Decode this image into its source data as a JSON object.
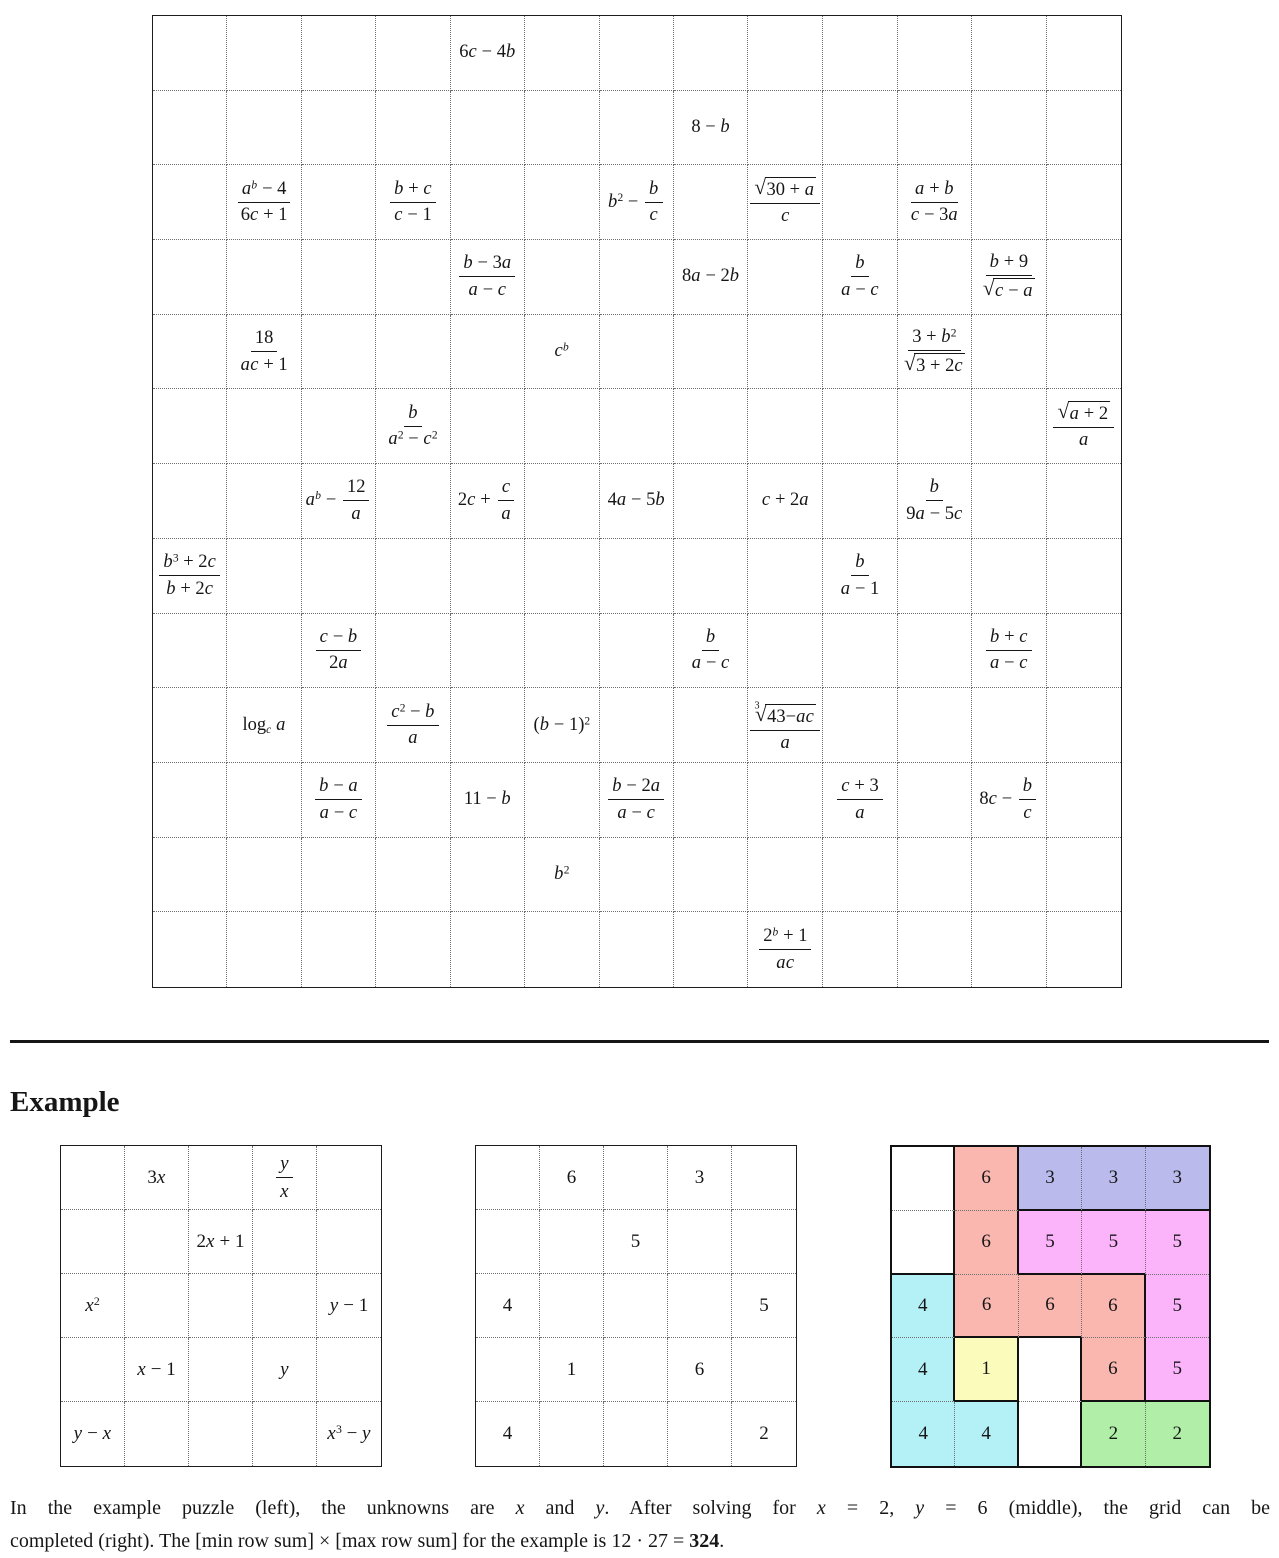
{
  "heading": "Example",
  "main_grid": {
    "rows": 13,
    "cols": 13,
    "cells": [
      {
        "r": 1,
        "c": 5,
        "tex": "6c - 4b"
      },
      {
        "r": 2,
        "c": 8,
        "tex": "8 - b"
      },
      {
        "r": 3,
        "c": 2,
        "tex": "\\frac{a^b - 4}{6c + 1}"
      },
      {
        "r": 3,
        "c": 4,
        "tex": "\\frac{b + c}{c - 1}"
      },
      {
        "r": 3,
        "c": 7,
        "tex": "b^2 - \\frac{b}{c}"
      },
      {
        "r": 3,
        "c": 9,
        "tex": "\\frac{\\sqrt{30 + a}}{c}"
      },
      {
        "r": 3,
        "c": 11,
        "tex": "\\frac{a + b}{c - 3a}"
      },
      {
        "r": 4,
        "c": 5,
        "tex": "\\frac{b - 3a}{a - c}"
      },
      {
        "r": 4,
        "c": 8,
        "tex": "8a - 2b"
      },
      {
        "r": 4,
        "c": 10,
        "tex": "\\frac{b}{a - c}"
      },
      {
        "r": 4,
        "c": 12,
        "tex": "\\frac{b + 9}{\\sqrt{c - a}}"
      },
      {
        "r": 5,
        "c": 2,
        "tex": "\\frac{18}{ac + 1}"
      },
      {
        "r": 5,
        "c": 6,
        "tex": "c^b"
      },
      {
        "r": 5,
        "c": 11,
        "tex": "\\frac{3 + b^2}{\\sqrt{3 + 2c}}"
      },
      {
        "r": 6,
        "c": 4,
        "tex": "\\frac{b}{a^2 - c^2}"
      },
      {
        "r": 6,
        "c": 13,
        "tex": "\\frac{\\sqrt{a + 2}}{a}"
      },
      {
        "r": 7,
        "c": 3,
        "tex": "a^b - \\frac{12}{a}"
      },
      {
        "r": 7,
        "c": 5,
        "tex": "2c + \\frac{c}{a}"
      },
      {
        "r": 7,
        "c": 7,
        "tex": "4a - 5b"
      },
      {
        "r": 7,
        "c": 9,
        "tex": "c + 2a"
      },
      {
        "r": 7,
        "c": 11,
        "tex": "\\frac{b}{9a - 5c}"
      },
      {
        "r": 8,
        "c": 1,
        "tex": "\\frac{b^3 + 2c}{b + 2c}"
      },
      {
        "r": 8,
        "c": 10,
        "tex": "\\frac{b}{a - 1}"
      },
      {
        "r": 9,
        "c": 3,
        "tex": "\\frac{c - b}{2a}"
      },
      {
        "r": 9,
        "c": 8,
        "tex": "\\frac{b}{a - c}"
      },
      {
        "r": 9,
        "c": 12,
        "tex": "\\frac{b + c}{a - c}"
      },
      {
        "r": 10,
        "c": 2,
        "tex": "\\log_c a"
      },
      {
        "r": 10,
        "c": 4,
        "tex": "\\frac{c^2 - b}{a}"
      },
      {
        "r": 10,
        "c": 6,
        "tex": "(b - 1)^2"
      },
      {
        "r": 10,
        "c": 9,
        "tex": "\\frac{\\sqrt[3]{43-ac}}{a}"
      },
      {
        "r": 11,
        "c": 3,
        "tex": "\\frac{b - a}{a - c}"
      },
      {
        "r": 11,
        "c": 5,
        "tex": "11 - b"
      },
      {
        "r": 11,
        "c": 7,
        "tex": "\\frac{b - 2a}{a - c}"
      },
      {
        "r": 11,
        "c": 10,
        "tex": "\\frac{c + 3}{a}"
      },
      {
        "r": 11,
        "c": 12,
        "tex": "8c - \\frac{b}{c}"
      },
      {
        "r": 12,
        "c": 6,
        "tex": "b^2"
      },
      {
        "r": 13,
        "c": 9,
        "tex": "\\frac{2^b + 1}{ac}"
      }
    ]
  },
  "example": {
    "clue_grid": {
      "rows": 5,
      "cols": 5,
      "cells": [
        {
          "r": 1,
          "c": 2,
          "tex": "3x"
        },
        {
          "r": 1,
          "c": 4,
          "tex": "\\frac{y}{x}"
        },
        {
          "r": 2,
          "c": 3,
          "tex": "2x + 1"
        },
        {
          "r": 3,
          "c": 1,
          "tex": "x^2"
        },
        {
          "r": 3,
          "c": 5,
          "tex": "y - 1"
        },
        {
          "r": 4,
          "c": 2,
          "tex": "x - 1"
        },
        {
          "r": 4,
          "c": 4,
          "tex": "y"
        },
        {
          "r": 5,
          "c": 1,
          "tex": "y - x"
        },
        {
          "r": 5,
          "c": 5,
          "tex": "x^3 - y"
        }
      ]
    },
    "solved_grid": {
      "rows": 5,
      "cols": 5,
      "cells": [
        {
          "r": 1,
          "c": 2,
          "tex": "6"
        },
        {
          "r": 1,
          "c": 4,
          "tex": "3"
        },
        {
          "r": 2,
          "c": 3,
          "tex": "5"
        },
        {
          "r": 3,
          "c": 1,
          "tex": "4"
        },
        {
          "r": 3,
          "c": 5,
          "tex": "5"
        },
        {
          "r": 4,
          "c": 2,
          "tex": "1"
        },
        {
          "r": 4,
          "c": 4,
          "tex": "6"
        },
        {
          "r": 5,
          "c": 1,
          "tex": "4"
        },
        {
          "r": 5,
          "c": 5,
          "tex": "2"
        }
      ]
    },
    "colored_grid": {
      "rows": 5,
      "cols": 5,
      "values": [
        [
          "",
          "6",
          "3",
          "3",
          "3"
        ],
        [
          "",
          "6",
          "5",
          "5",
          "5"
        ],
        [
          "4",
          "6",
          "6",
          "6",
          "5"
        ],
        [
          "4",
          "1",
          "",
          "6",
          "5"
        ],
        [
          "4",
          "4",
          "",
          "2",
          "2"
        ]
      ],
      "regions": [
        [
          "W1",
          "R",
          "B",
          "B",
          "B"
        ],
        [
          "W1",
          "R",
          "M",
          "M",
          "M"
        ],
        [
          "C",
          "R",
          "R",
          "R",
          "M"
        ],
        [
          "C",
          "Y",
          "W2",
          "R",
          "M"
        ],
        [
          "C",
          "C",
          "W2",
          "G",
          "G"
        ]
      ],
      "region_colors": {
        "W1": "#ffffff",
        "W2": "#ffffff",
        "R": "#f9b7b0",
        "B": "#babaec",
        "M": "#fbb4fa",
        "C": "#b4f1f6",
        "Y": "#fbfbbc",
        "G": "#b1efa9"
      }
    }
  },
  "caption": {
    "line1": [
      {
        "t": "In the example puzzle (left), the unknowns are "
      },
      {
        "t": "x",
        "s": "i"
      },
      {
        "t": " and "
      },
      {
        "t": "y",
        "s": "i"
      },
      {
        "t": ".  After solving for "
      },
      {
        "t": "x",
        "s": "i"
      },
      {
        "t": " = 2, "
      },
      {
        "t": "y",
        "s": "i"
      },
      {
        "t": " = 6 (middle), the grid can be"
      }
    ],
    "line2": [
      {
        "t": "completed (right). The [min row sum] × [max row sum] for the example is 12 · 27 = "
      },
      {
        "t": "324",
        "s": "b"
      },
      {
        "t": "."
      }
    ]
  }
}
